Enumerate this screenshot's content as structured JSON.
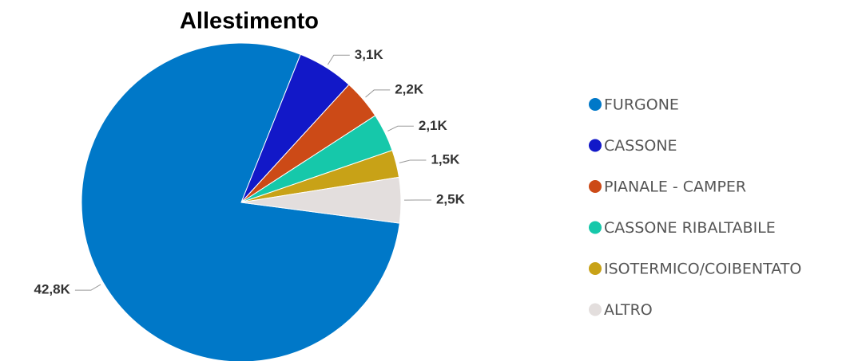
{
  "chart_data": {
    "type": "pie",
    "title": "Allestimento",
    "categories": [
      "FURGONE",
      "CASSONE",
      "PIANALE - CAMPER",
      "CASSONE RIBALTABILE",
      "ISOTERMICO/COIBENTATO",
      "ALTRO"
    ],
    "values": [
      42800,
      3100,
      2200,
      2100,
      1500,
      2500
    ],
    "value_labels": [
      "42,8K",
      "3,1K",
      "2,2K",
      "2,1K",
      "1,5K",
      "2,5K"
    ],
    "colors": [
      "#0078c8",
      "#1218c8",
      "#cc4a17",
      "#16c8aa",
      "#c8a217",
      "#e3dedd"
    ]
  }
}
